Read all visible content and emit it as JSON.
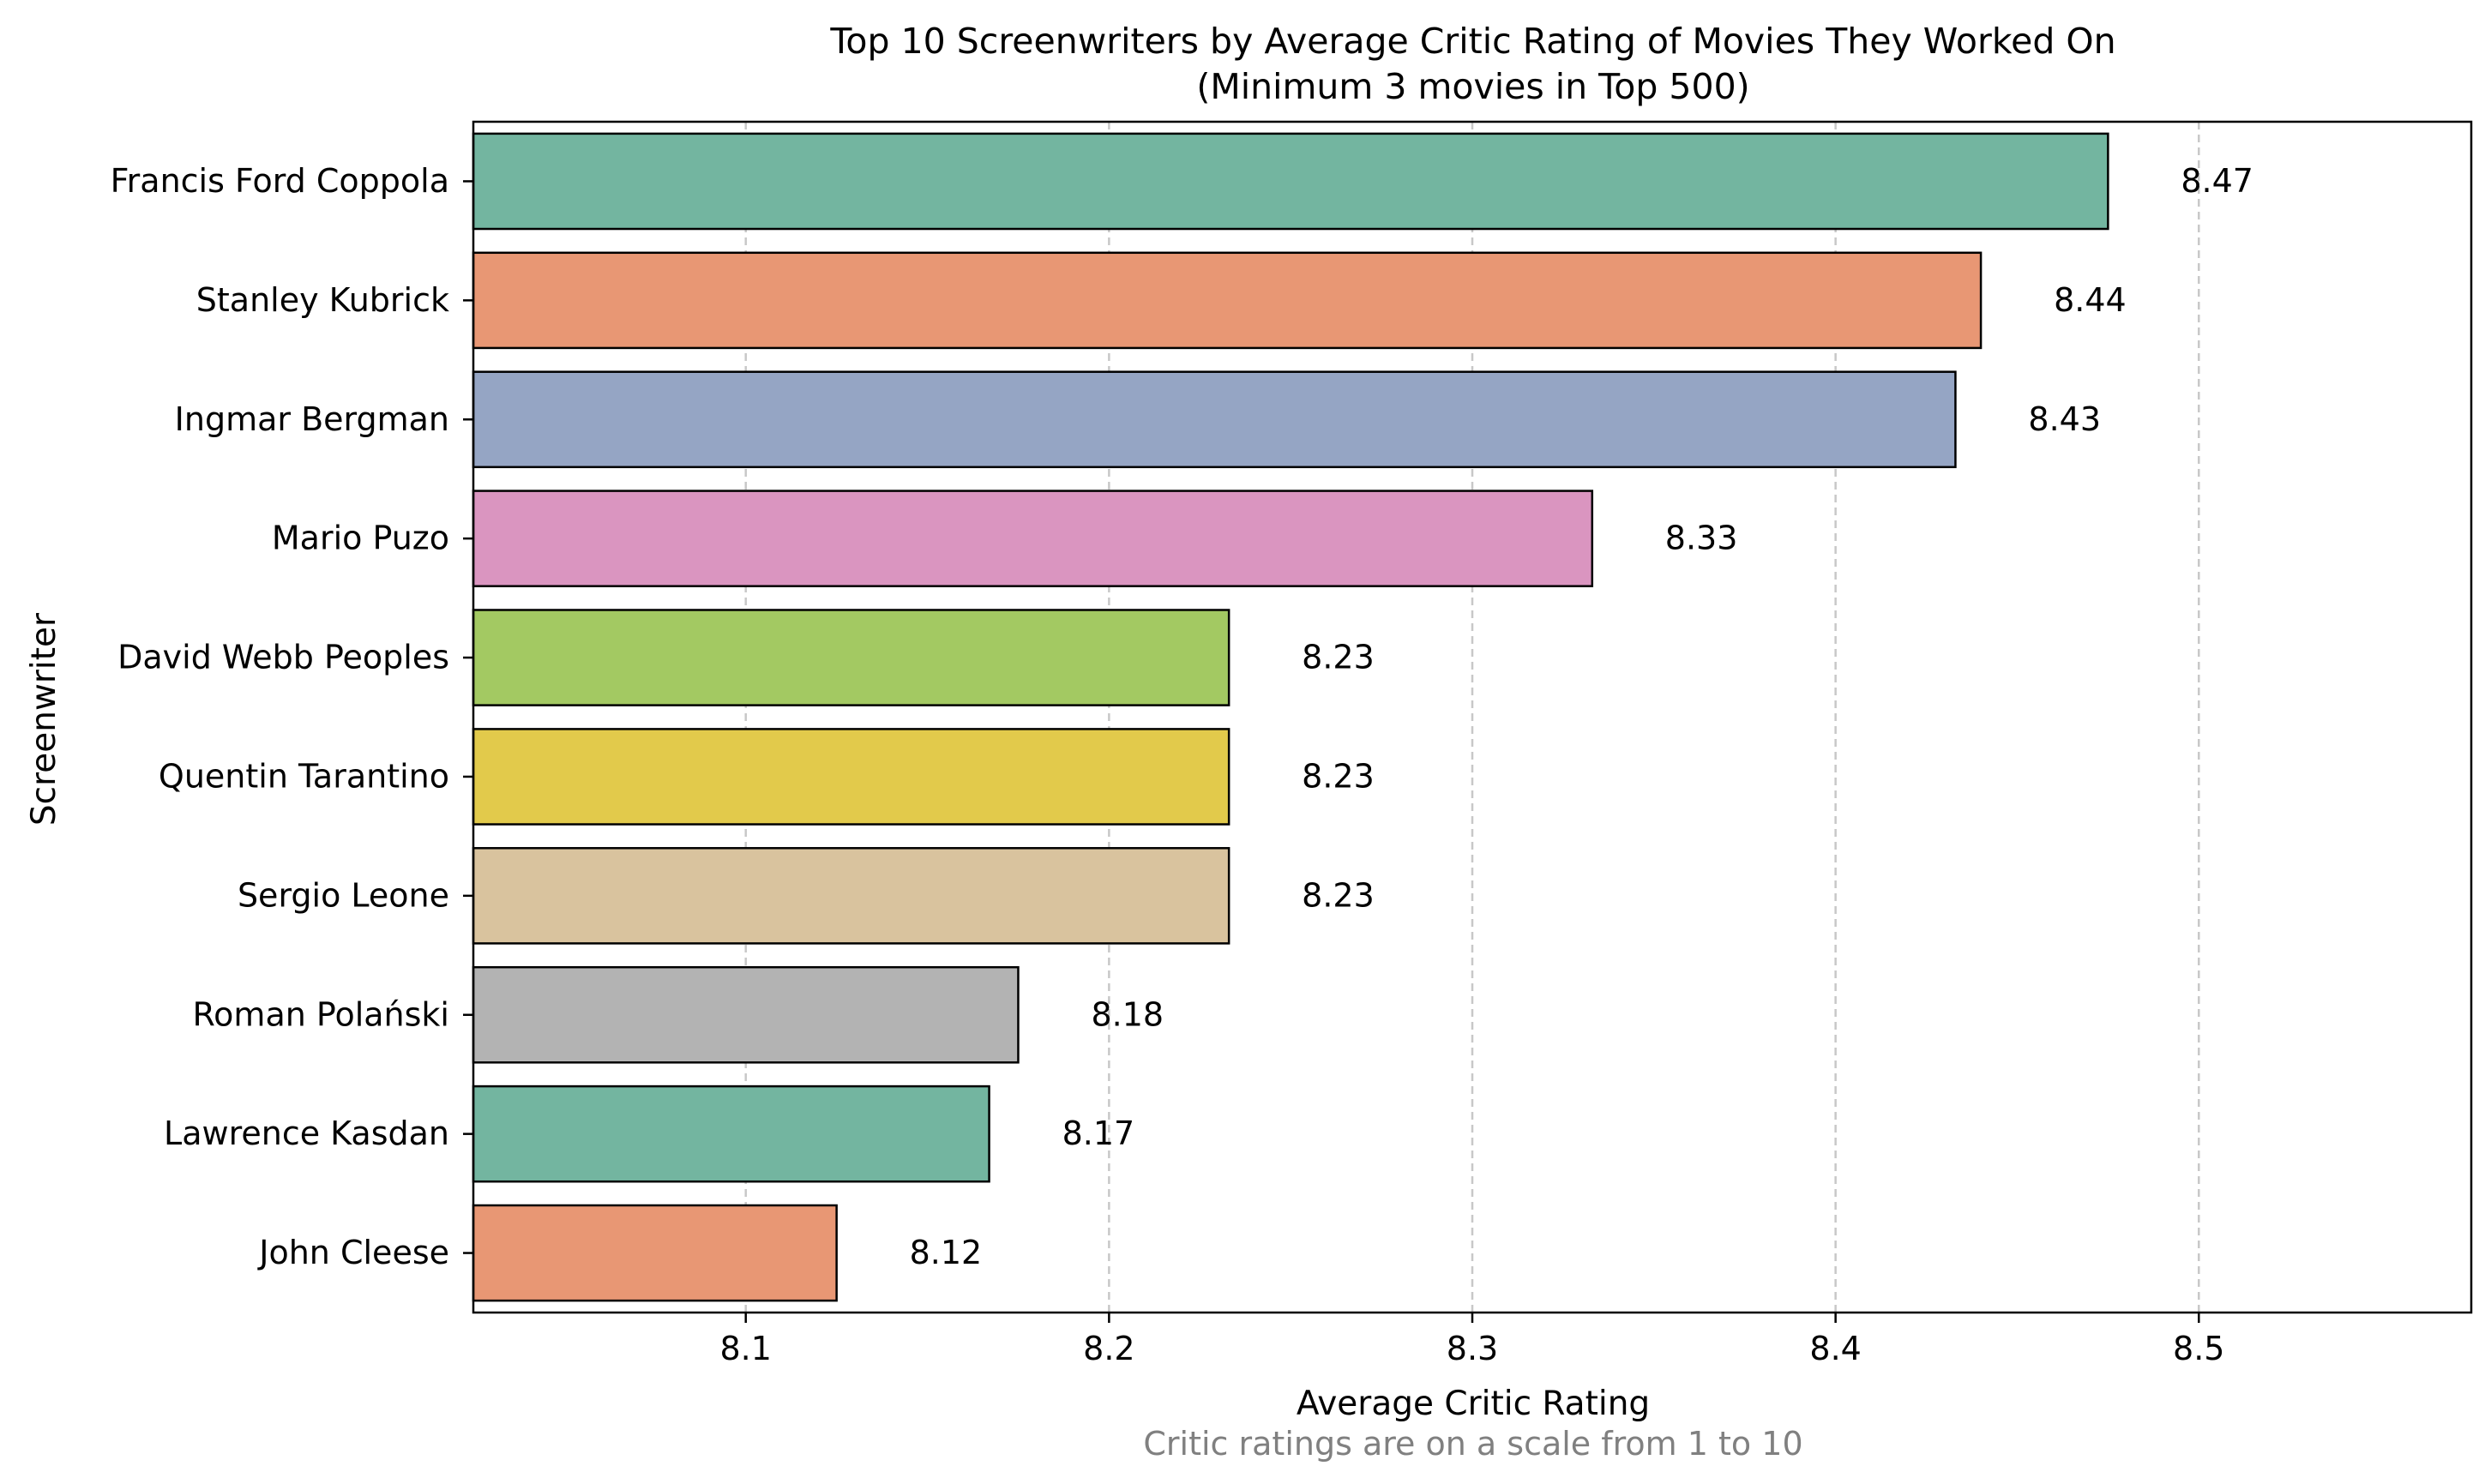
{
  "chart_data": {
    "type": "bar",
    "orientation": "horizontal",
    "title_line1": "Top 10 Screenwriters by Average Critic Rating of Movies They Worked On",
    "title_line2": "(Minimum 3 movies in Top 500)",
    "xlabel": "Average Critic Rating",
    "ylabel": "Screenwriter",
    "caption": "Critic ratings are on a scale from 1 to 10",
    "xlim": [
      8.025,
      8.575
    ],
    "xticks": [
      "8.1",
      "8.2",
      "8.3",
      "8.4",
      "8.5"
    ],
    "xtick_values": [
      8.1,
      8.2,
      8.3,
      8.4,
      8.5
    ],
    "grid": "x-dashed",
    "categories": [
      "Francis Ford Coppola",
      "Stanley Kubrick",
      "Ingmar Bergman",
      "Mario Puzo",
      "David Webb Peoples",
      "Quentin Tarantino",
      "Sergio Leone",
      "Roman Polański",
      "Lawrence Kasdan",
      "John Cleese"
    ],
    "values": [
      8.475,
      8.44,
      8.433,
      8.333,
      8.233,
      8.233,
      8.233,
      8.175,
      8.167,
      8.125
    ],
    "value_labels": [
      "8.47",
      "8.44",
      "8.43",
      "8.33",
      "8.23",
      "8.23",
      "8.23",
      "8.18",
      "8.17",
      "8.12"
    ],
    "colors": [
      "#73b5a0",
      "#e89774",
      "#95a5c4",
      "#da95c0",
      "#a3c962",
      "#e2ca4b",
      "#d9c39e",
      "#b3b3b3",
      "#73b5a0",
      "#e89774"
    ],
    "edge_color": "#000000",
    "grid_color": "#c8c8c8"
  }
}
